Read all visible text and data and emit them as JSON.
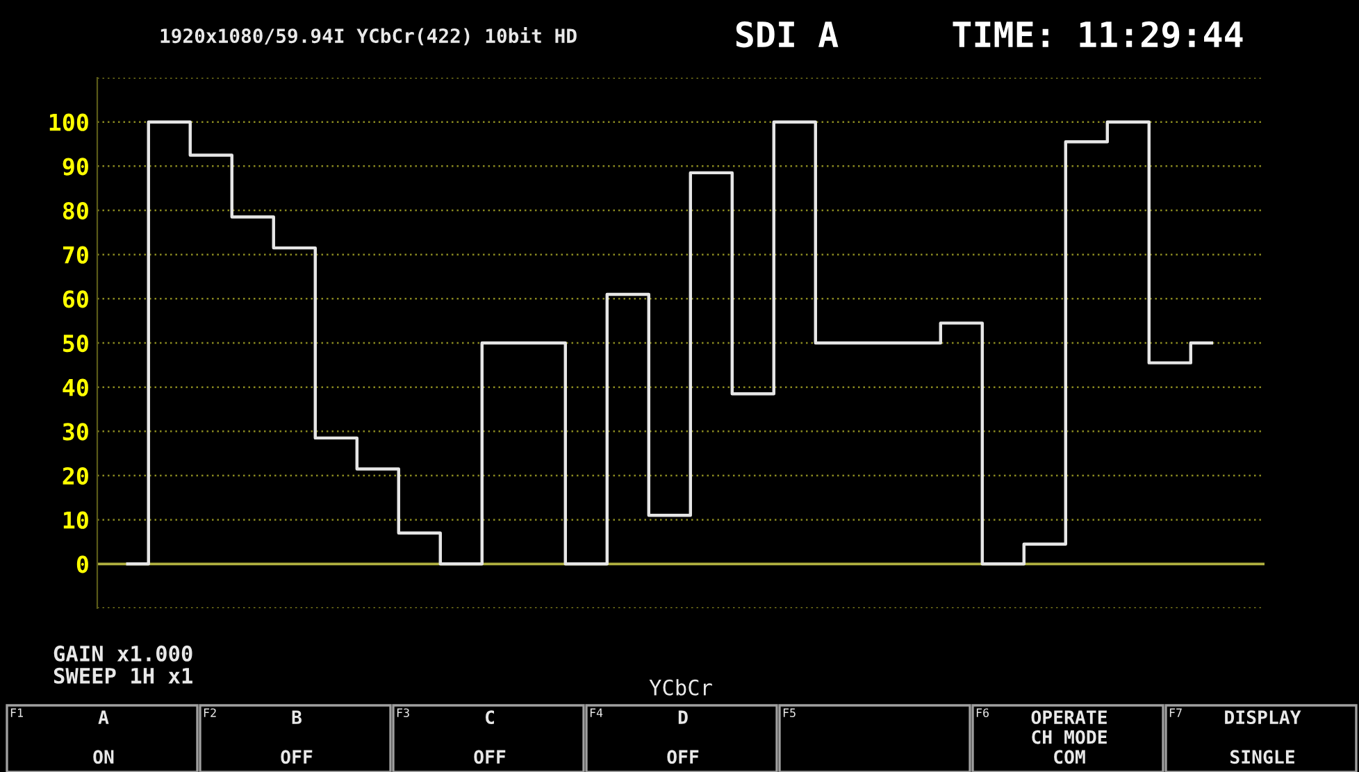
{
  "chart_data": {
    "type": "step",
    "title": "1920x1080/59.94I YCbCr(422) 10bit HD",
    "xlabel": "YCbCr",
    "categories": [
      null,
      null,
      null,
      null,
      null,
      null,
      null,
      null,
      null,
      null,
      null,
      null,
      null,
      null,
      null,
      null,
      null,
      null,
      null,
      null,
      null,
      null,
      null,
      null,
      null,
      null,
      null
    ],
    "series": [
      {
        "color": "#e6e6e6",
        "values": [
          0,
          100,
          92.5,
          78.5,
          71.5,
          28.5,
          21.5,
          7,
          0,
          50,
          50,
          0,
          61,
          11,
          88.5,
          38.5,
          100,
          50,
          50,
          50,
          54.5,
          0,
          4.5,
          95.5,
          100,
          45.5,
          50
        ]
      }
    ],
    "ylim": [
      -10,
      110
    ],
    "ref_lines": [
      {
        "axis": "y",
        "value": 0,
        "color": "#b0b040"
      }
    ],
    "yticks": [
      {
        "value": -10,
        "label": null
      },
      0,
      10,
      20,
      30,
      40,
      50,
      60,
      70,
      80,
      90,
      100,
      {
        "value": 110,
        "label": null
      }
    ],
    "grid": "y",
    "annotations": [
      "SDI A",
      "TIME: 11:29:44",
      "GAIN x1.000",
      "SWEEP 1H x1",
      "F1\nA\n\nON",
      "F2\nB\n\nOFF",
      "F3\nC\n\nOFF",
      "F4\nD\n\nOFF",
      "F5",
      "F6\nOPERATE\nCH MODE\nCOM",
      "F7\nDISPLAY\n\nSINGLE"
    ]
  }
}
